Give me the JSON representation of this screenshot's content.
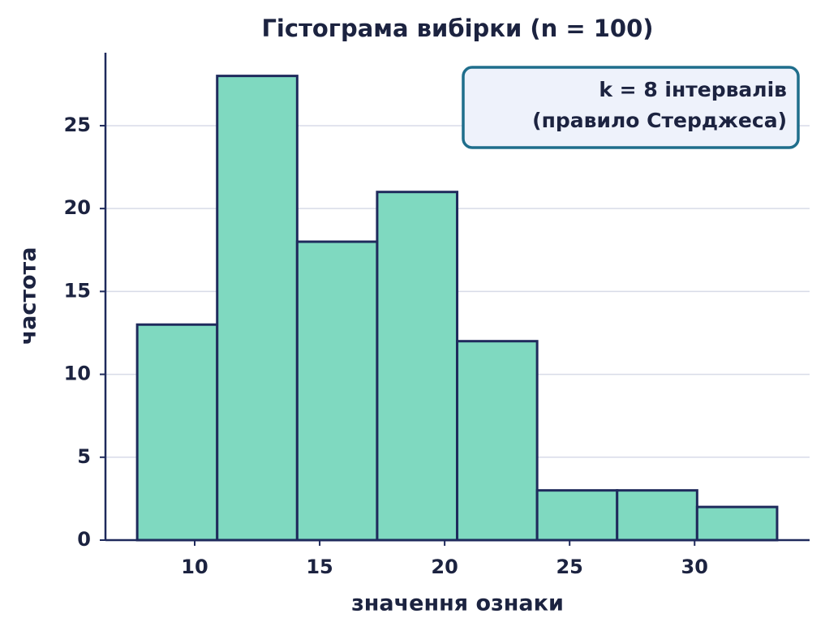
{
  "chart_data": {
    "type": "histogram",
    "title": "Гістограма вибірки (n = 100)",
    "annotation": [
      "k = 8 інтервалів",
      "(правило Стерджеса)"
    ],
    "xlabel": "значення ознаки",
    "ylabel": "частота",
    "bins": [
      7.7,
      10.9,
      14.1,
      17.3,
      20.5,
      23.7,
      26.9,
      30.1,
      33.3
    ],
    "counts": [
      13,
      28,
      18,
      21,
      12,
      3,
      3,
      2
    ],
    "color": "#7fd9c0",
    "edgecolor": "#1f2a5c",
    "xlim": [
      6.43,
      34.6
    ],
    "ylim": [
      0,
      29.4
    ],
    "xticks": [
      10,
      15,
      20,
      25,
      30
    ],
    "yticks": [
      0,
      5,
      10,
      15,
      20,
      25
    ],
    "grid": true
  }
}
